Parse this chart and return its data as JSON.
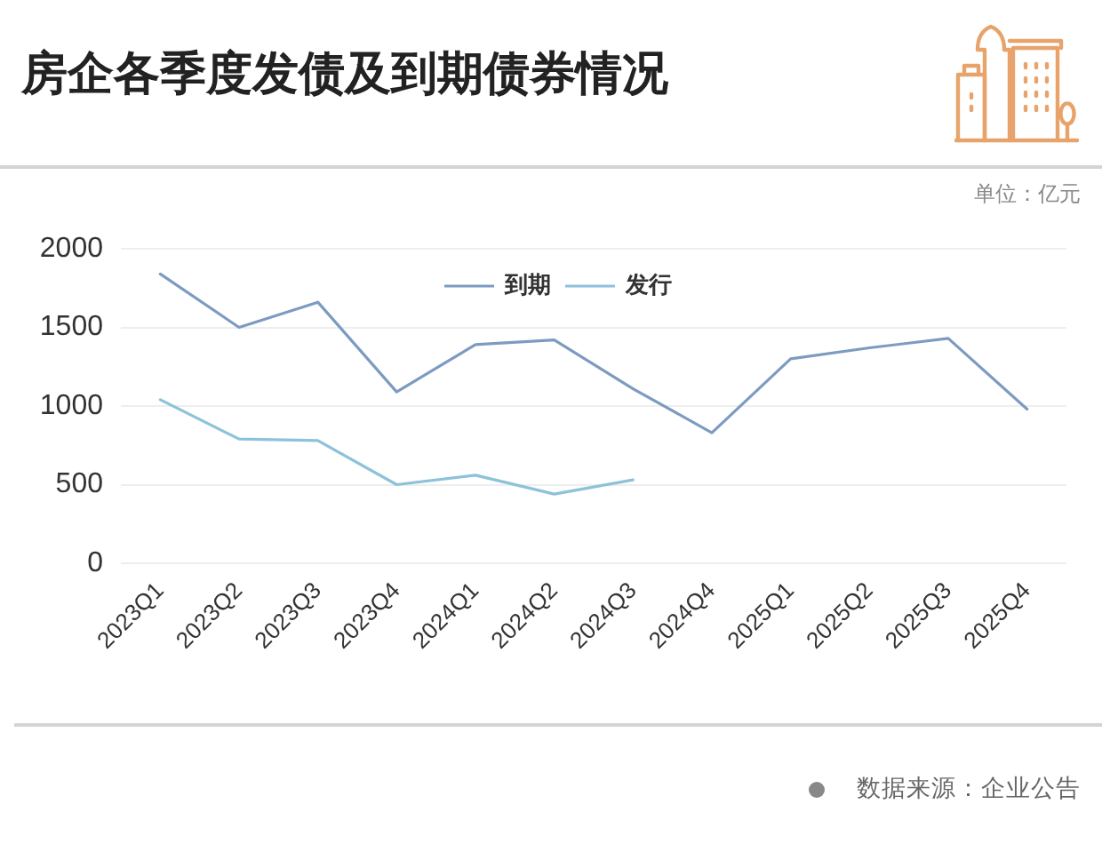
{
  "chart_data": {
    "type": "line",
    "title": "房企各季度发债及到期债券情况",
    "subtitle": "单位：亿元",
    "categories": [
      "2023Q1",
      "2023Q2",
      "2023Q3",
      "2023Q4",
      "2024Q1",
      "2024Q2",
      "2024Q3",
      "2024Q4",
      "2025Q1",
      "2025Q2",
      "2025Q3",
      "2025Q4"
    ],
    "series": [
      {
        "name": "到期",
        "color": "#7d9bc1",
        "values": [
          1840,
          1500,
          1660,
          1090,
          1390,
          1420,
          1110,
          830,
          1300,
          1370,
          1430,
          980
        ]
      },
      {
        "name": "发行",
        "color": "#8cc2da",
        "values": [
          1040,
          790,
          780,
          500,
          560,
          440,
          530,
          null,
          null,
          null,
          null,
          null
        ]
      }
    ],
    "ylim": [
      0,
      2000
    ],
    "yticks": [
      0,
      500,
      1000,
      1500,
      2000
    ],
    "grid": "y",
    "legend": "top",
    "annotations": [
      "数据来源：企业公告"
    ]
  }
}
